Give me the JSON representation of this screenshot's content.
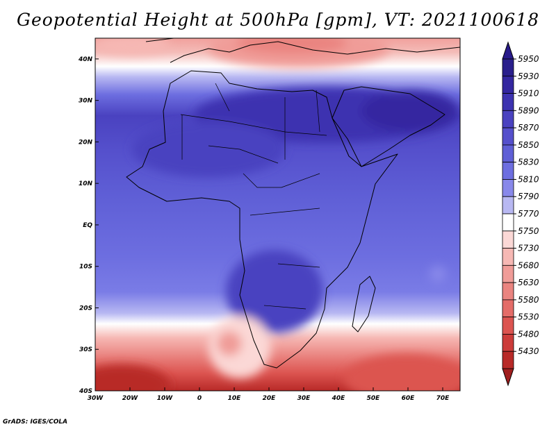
{
  "title": "Geopotential Height at 500hPa [gpm], VT: 2021100618",
  "credit": "GrADS: IGES/COLA",
  "map": {
    "lon_range": [
      -30,
      75
    ],
    "lat_range": [
      -40,
      45
    ],
    "x_ticks": [
      {
        "lon": -30,
        "label": "30W"
      },
      {
        "lon": -20,
        "label": "20W"
      },
      {
        "lon": -10,
        "label": "10W"
      },
      {
        "lon": 0,
        "label": "0"
      },
      {
        "lon": 10,
        "label": "10E"
      },
      {
        "lon": 20,
        "label": "20E"
      },
      {
        "lon": 30,
        "label": "30E"
      },
      {
        "lon": 40,
        "label": "40E"
      },
      {
        "lon": 50,
        "label": "50E"
      },
      {
        "lon": 60,
        "label": "60E"
      },
      {
        "lon": 70,
        "label": "70E"
      }
    ],
    "y_ticks": [
      {
        "lat": 40,
        "label": "40N"
      },
      {
        "lat": 30,
        "label": "30N"
      },
      {
        "lat": 20,
        "label": "20N"
      },
      {
        "lat": 10,
        "label": "10N"
      },
      {
        "lat": 0,
        "label": "EQ"
      },
      {
        "lat": -10,
        "label": "10S"
      },
      {
        "lat": -20,
        "label": "20S"
      },
      {
        "lat": -30,
        "label": "30S"
      },
      {
        "lat": -40,
        "label": "40S"
      }
    ]
  },
  "colorbar": {
    "levels": [
      {
        "label": "5950",
        "color": "#2a1f8c"
      },
      {
        "label": "5930",
        "color": "#3427a0"
      },
      {
        "label": "5910",
        "color": "#3d33b0"
      },
      {
        "label": "5890",
        "color": "#4a42c0"
      },
      {
        "label": "5870",
        "color": "#5550cc"
      },
      {
        "label": "5850",
        "color": "#5f5fd6"
      },
      {
        "label": "5830",
        "color": "#6d6ee0"
      },
      {
        "label": "5810",
        "color": "#8888ea"
      },
      {
        "label": "5790",
        "color": "#b8b8f2"
      },
      {
        "label": "5770",
        "color": "#ffffff"
      },
      {
        "label": "5750",
        "color": "#fbd8d6"
      },
      {
        "label": "5730",
        "color": "#f6b8b4"
      },
      {
        "label": "5680",
        "color": "#f09c98"
      },
      {
        "label": "5630",
        "color": "#ea8480"
      },
      {
        "label": "5580",
        "color": "#e46c68"
      },
      {
        "label": "5530",
        "color": "#dc5450"
      },
      {
        "label": "5480",
        "color": "#cc3c3a"
      },
      {
        "label": "5430",
        "color": "#b82a28"
      }
    ],
    "max_color": "#281a8a",
    "min_color": "#a01e1e"
  }
}
